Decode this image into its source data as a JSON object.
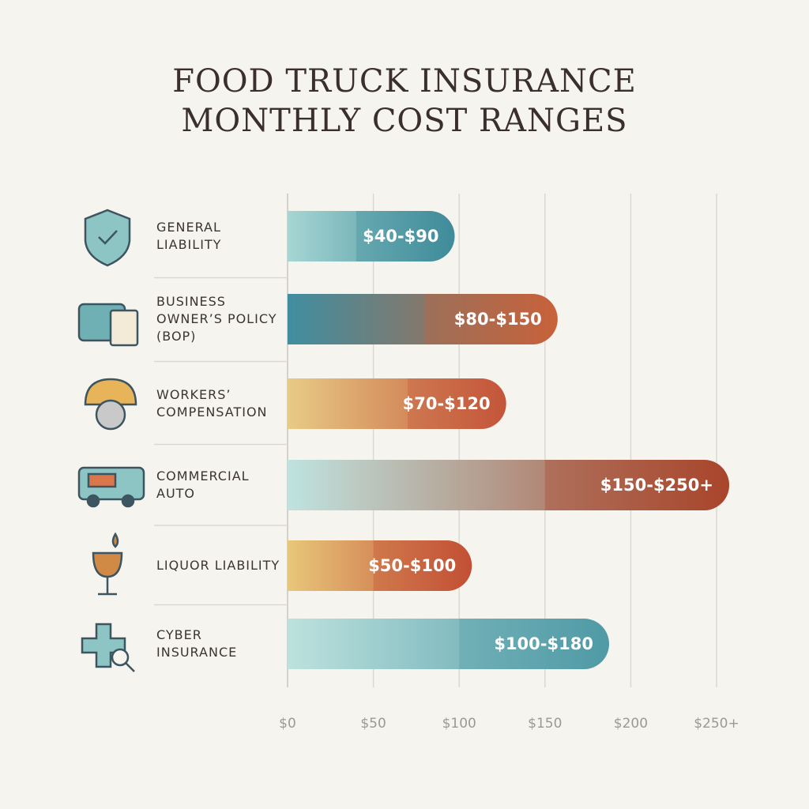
{
  "chart_data": {
    "type": "range-bar",
    "title": "FOOD TRUCK INSURANCE MONTHLY COST RANGES",
    "categories": [
      "GENERAL LIABILITY",
      "BUSINESS OWNER’S POLICY (BOP)",
      "WORKERS’ COMPENSATION",
      "COMMERCIAL AUTO",
      "LIQUOR LIABILITY",
      "CYBER INSURANCE"
    ],
    "low": [
      40,
      80,
      70,
      150,
      50,
      100
    ],
    "high": [
      90,
      150,
      120,
      250,
      100,
      180
    ],
    "value_labels": [
      "$40-$90",
      "$80-$150",
      "$70-$120",
      "$150-$250+",
      "$50-$100",
      "$100-$180"
    ],
    "colors": [
      [
        "#a6d6d3",
        "#3f8b9a"
      ],
      [
        "#3f8ea0",
        "#c8623a"
      ],
      [
        "#e8cb85",
        "#c4553a"
      ],
      [
        "#bfe3df",
        "#a8462b"
      ],
      [
        "#e8c77a",
        "#c24f35"
      ],
      [
        "#bde2de",
        "#4f9aa5"
      ]
    ],
    "xlim": [
      0,
      250
    ],
    "xticks": [
      {
        "value": 0,
        "label": "$0"
      },
      {
        "value": 50,
        "label": "$50"
      },
      {
        "value": 100,
        "label": "$100"
      },
      {
        "value": 150,
        "label": "$150"
      },
      {
        "value": 200,
        "label": "$200"
      },
      {
        "value": 250,
        "label": "$250+"
      }
    ],
    "grid": true
  }
}
